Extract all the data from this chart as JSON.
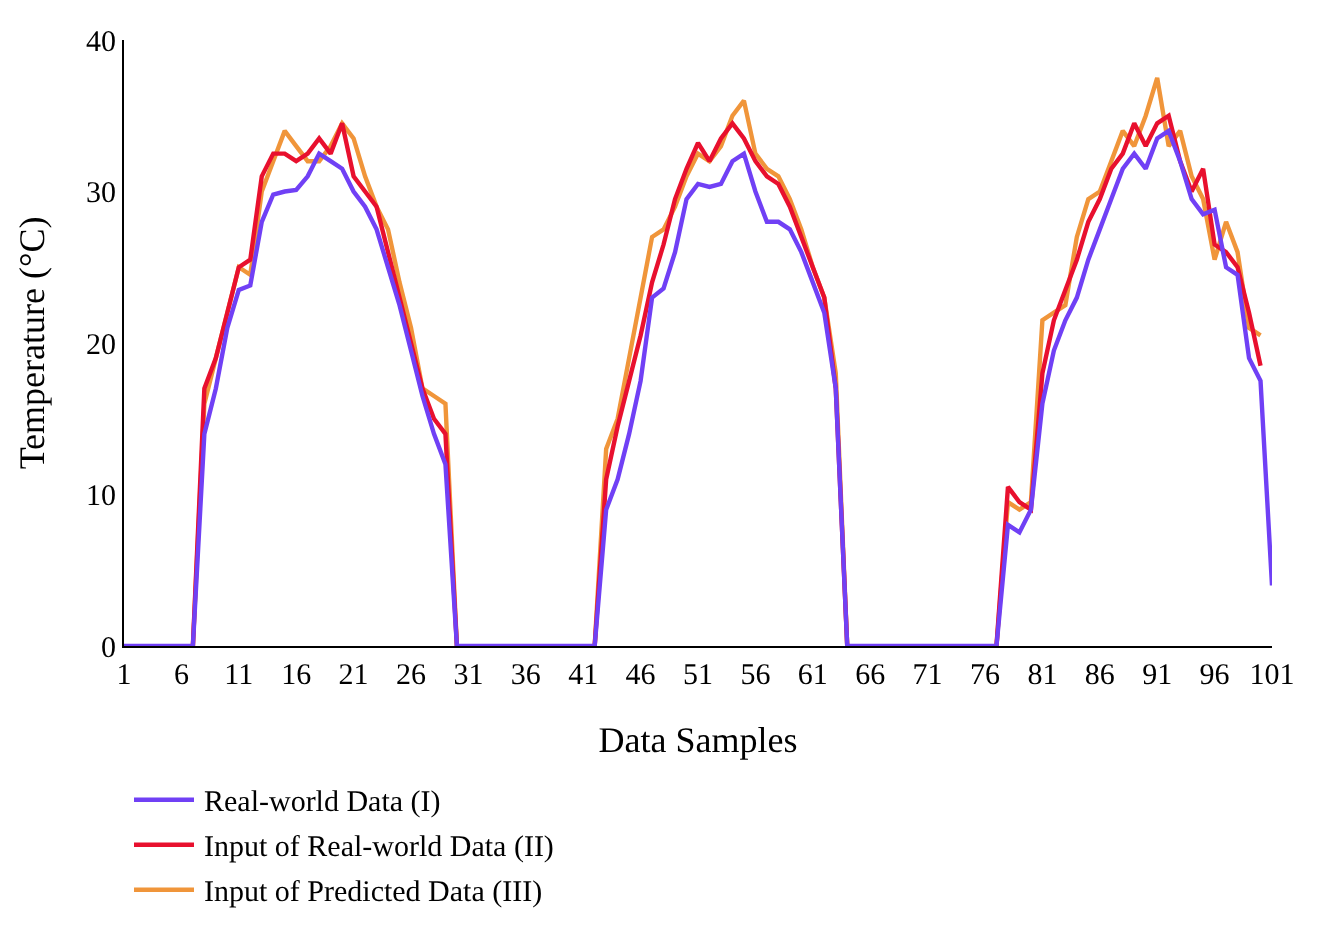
{
  "chart_data": {
    "type": "line",
    "xlabel": "Data Samples",
    "ylabel": "Temperature (°C)",
    "x": [
      1,
      2,
      3,
      4,
      5,
      6,
      7,
      8,
      9,
      10,
      11,
      12,
      13,
      14,
      15,
      16,
      17,
      18,
      19,
      20,
      21,
      22,
      23,
      24,
      25,
      26,
      27,
      28,
      29,
      30,
      31,
      32,
      33,
      34,
      35,
      36,
      37,
      38,
      39,
      40,
      41,
      42,
      43,
      44,
      45,
      46,
      47,
      48,
      49,
      50,
      51,
      52,
      53,
      54,
      55,
      56,
      57,
      58,
      59,
      60,
      61,
      62,
      63,
      64,
      65,
      66,
      67,
      68,
      69,
      70,
      71,
      72,
      73,
      74,
      75,
      76,
      77,
      78,
      79,
      80,
      81,
      82,
      83,
      84,
      85,
      86,
      87,
      88,
      89,
      90,
      91,
      92,
      93,
      94,
      95,
      96,
      97,
      98,
      99,
      100,
      101
    ],
    "xlim": [
      1,
      101
    ],
    "xticks": [
      1,
      6,
      11,
      16,
      21,
      26,
      31,
      36,
      41,
      46,
      51,
      56,
      61,
      66,
      71,
      76,
      81,
      86,
      91,
      96,
      101
    ],
    "ylim": [
      0,
      40
    ],
    "yticks": [
      0,
      10,
      20,
      30,
      40
    ],
    "legend": "bottom left",
    "marker": "none",
    "line_style": "solid",
    "series": [
      {
        "name": "Real-world Data (I)",
        "color": "#7040f5",
        "values": [
          0,
          0,
          0,
          0,
          0,
          0,
          0,
          14,
          17,
          21,
          23.5,
          23.8,
          28,
          29.8,
          30,
          30.1,
          31,
          32.5,
          32,
          31.5,
          30,
          29,
          27.5,
          25,
          22.5,
          19.5,
          16.5,
          14,
          12,
          0,
          0,
          0,
          0,
          0,
          0,
          0,
          0,
          0,
          0,
          0,
          0,
          0,
          9,
          11,
          14,
          17.5,
          23,
          23.6,
          26,
          29.5,
          30.5,
          30.3,
          30.5,
          32,
          32.5,
          30,
          28,
          28,
          27.5,
          26,
          24,
          22,
          17,
          0,
          0,
          0,
          0,
          0,
          0,
          0,
          0,
          0,
          0,
          0,
          0,
          0,
          0,
          8,
          7.5,
          9,
          16,
          19.5,
          21.5,
          23,
          25.5,
          27.5,
          29.5,
          31.5,
          32.5,
          31.5,
          33.5,
          34,
          32,
          29.5,
          28.5,
          28.8,
          25,
          24.5,
          19,
          17.5,
          4
        ]
      },
      {
        "name": "Input of Real-world Data (II)",
        "color": "#e8102e",
        "values": [
          null,
          null,
          null,
          null,
          null,
          null,
          0,
          17,
          19,
          22,
          25,
          25.5,
          31,
          32.5,
          32.5,
          32,
          32.5,
          33.5,
          32.5,
          34.5,
          31,
          30,
          29,
          26,
          23,
          20,
          17,
          15,
          14,
          0,
          null,
          null,
          null,
          null,
          null,
          null,
          null,
          null,
          null,
          null,
          null,
          0,
          11,
          14.5,
          17.5,
          20.5,
          24,
          26.5,
          29.5,
          31.5,
          33.2,
          32,
          33.5,
          34.5,
          33.5,
          32,
          31,
          30.5,
          29,
          27,
          25,
          23,
          17,
          0,
          null,
          null,
          null,
          null,
          null,
          null,
          null,
          null,
          null,
          null,
          null,
          null,
          0,
          10.5,
          9.5,
          9,
          18,
          21.5,
          23.5,
          25.5,
          28,
          29.5,
          31.5,
          32.5,
          34.5,
          33,
          34.5,
          35,
          32,
          30,
          31.5,
          26.5,
          26,
          25,
          22,
          18.5,
          null
        ]
      },
      {
        "name": "Input of Predicted Data (III)",
        "color": "#f0953a",
        "values": [
          null,
          null,
          null,
          null,
          null,
          null,
          0,
          16,
          19,
          22,
          25,
          24.5,
          30,
          32,
          34,
          33,
          32,
          32,
          33,
          34.5,
          33.5,
          31,
          29,
          27.5,
          24,
          21,
          17,
          16.5,
          16,
          0,
          null,
          null,
          null,
          null,
          null,
          null,
          null,
          null,
          null,
          null,
          null,
          0,
          13,
          15,
          19,
          23,
          27,
          27.5,
          29,
          31,
          32.5,
          32,
          33,
          35,
          36,
          32.5,
          31.5,
          31,
          29.5,
          27.5,
          25,
          23,
          18,
          0,
          null,
          null,
          null,
          null,
          null,
          null,
          null,
          null,
          null,
          null,
          null,
          null,
          0,
          9.5,
          9,
          9.5,
          21.5,
          22,
          22.5,
          27,
          29.5,
          30,
          32,
          34,
          33,
          35,
          37.5,
          33,
          34,
          31,
          29.5,
          25.5,
          28,
          26,
          21,
          20.5,
          null
        ]
      }
    ]
  }
}
